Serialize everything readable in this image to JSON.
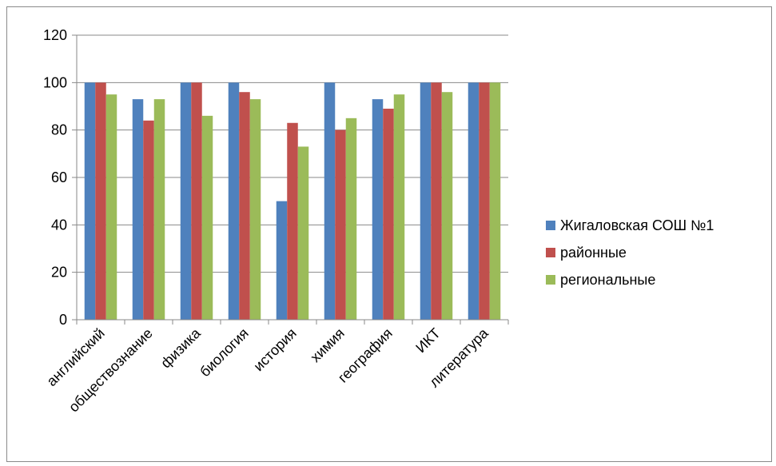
{
  "chart_data": {
    "type": "bar",
    "categories": [
      "английский",
      "обществознание",
      "физика",
      "биология",
      "история",
      "химия",
      "география",
      "ИКТ",
      "литература"
    ],
    "series": [
      {
        "name": "Жигаловская СОШ №1",
        "color": "#4f81bd",
        "values": [
          100,
          93,
          100,
          100,
          50,
          100,
          93,
          100,
          100
        ]
      },
      {
        "name": "районные",
        "color": "#c0504d",
        "values": [
          100,
          84,
          100,
          96,
          83,
          80,
          89,
          100,
          100
        ]
      },
      {
        "name": "региональные",
        "color": "#9bbb59",
        "values": [
          95,
          93,
          86,
          93,
          73,
          85,
          95,
          96,
          100
        ]
      }
    ],
    "ylim": [
      0,
      120
    ],
    "yticks": [
      "0",
      "20",
      "40",
      "60",
      "80",
      "100",
      "120"
    ],
    "grid": true,
    "legend": "right"
  }
}
